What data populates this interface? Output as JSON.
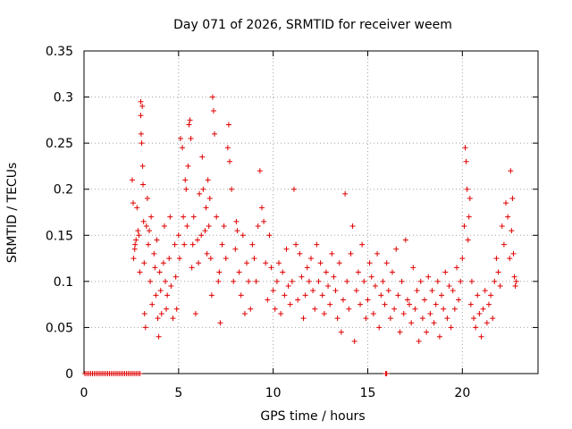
{
  "chart_data": {
    "type": "scatter",
    "title": "Day 071 of 2026, SRMTID for receiver weem",
    "xlabel": "GPS time / hours",
    "ylabel": "SRMTID / TECUs",
    "xlim": [
      0,
      24
    ],
    "ylim": [
      0,
      0.35
    ],
    "xticks": [
      0,
      5,
      10,
      15,
      20
    ],
    "xtick_labels": [
      "0",
      "5",
      "10",
      "15",
      "20"
    ],
    "yticks": [
      0,
      0.05,
      0.1,
      0.15,
      0.2,
      0.25,
      0.3,
      0.35
    ],
    "ytick_labels": [
      "0",
      "0.05",
      "0.1",
      "0.15",
      "0.2",
      "0.25",
      "0.3",
      "0.35"
    ],
    "grid": true,
    "marker": "plus",
    "series": [
      {
        "name": "SRMTID",
        "color": "#e00000",
        "x": [
          0.05,
          0.15,
          0.25,
          0.35,
          0.45,
          0.55,
          0.65,
          0.75,
          0.85,
          0.95,
          1.05,
          1.15,
          1.25,
          1.35,
          1.45,
          1.55,
          1.65,
          1.75,
          1.85,
          1.95,
          2.05,
          2.15,
          2.25,
          2.35,
          2.45,
          2.55,
          2.65,
          2.75,
          2.85,
          2.95,
          2.55,
          2.6,
          2.62,
          2.68,
          2.7,
          2.75,
          2.8,
          2.85,
          2.9,
          2.95,
          3.0,
          3.0,
          3.02,
          3.05,
          3.08,
          3.1,
          3.12,
          3.15,
          3.18,
          3.2,
          3.25,
          3.3,
          3.35,
          3.4,
          3.45,
          3.5,
          3.55,
          3.6,
          3.7,
          3.75,
          3.8,
          3.85,
          3.9,
          3.95,
          4.0,
          4.05,
          4.1,
          4.2,
          4.25,
          4.3,
          4.35,
          4.4,
          4.5,
          4.55,
          4.6,
          4.7,
          4.8,
          4.85,
          4.9,
          5.0,
          5.05,
          5.1,
          5.2,
          5.25,
          5.3,
          5.35,
          5.4,
          5.45,
          5.5,
          5.55,
          5.6,
          5.65,
          5.7,
          5.75,
          5.8,
          5.9,
          6.0,
          6.05,
          6.1,
          6.2,
          6.25,
          6.3,
          6.4,
          6.45,
          6.5,
          6.55,
          6.6,
          6.65,
          6.7,
          6.75,
          6.8,
          6.85,
          6.9,
          7.0,
          7.1,
          7.15,
          7.2,
          7.3,
          7.4,
          7.5,
          7.6,
          7.65,
          7.7,
          7.8,
          7.9,
          8.0,
          8.05,
          8.1,
          8.2,
          8.3,
          8.4,
          8.5,
          8.6,
          8.7,
          8.8,
          8.9,
          9.0,
          9.1,
          9.2,
          9.3,
          9.4,
          9.5,
          9.6,
          9.7,
          9.8,
          9.9,
          10.0,
          10.1,
          10.2,
          10.3,
          10.4,
          10.5,
          10.6,
          10.7,
          10.8,
          10.9,
          11.0,
          11.1,
          11.2,
          11.3,
          11.4,
          11.5,
          11.6,
          11.7,
          11.8,
          11.9,
          12.0,
          12.1,
          12.2,
          12.3,
          12.4,
          12.5,
          12.6,
          12.7,
          12.8,
          12.9,
          13.0,
          13.1,
          13.2,
          13.3,
          13.4,
          13.5,
          13.6,
          13.7,
          13.8,
          13.9,
          14.0,
          14.1,
          14.2,
          14.3,
          14.4,
          14.5,
          14.6,
          14.7,
          14.8,
          14.9,
          15.0,
          15.1,
          15.2,
          15.3,
          15.4,
          15.5,
          15.6,
          15.7,
          15.8,
          15.9,
          16.0,
          16.1,
          16.2,
          16.3,
          16.4,
          16.5,
          16.6,
          16.7,
          16.8,
          16.9,
          17.0,
          17.1,
          17.2,
          17.3,
          17.4,
          17.5,
          17.6,
          17.7,
          17.8,
          17.9,
          18.0,
          18.1,
          18.2,
          18.3,
          18.4,
          18.5,
          18.6,
          18.7,
          18.8,
          18.9,
          19.0,
          19.1,
          19.2,
          19.3,
          19.4,
          19.5,
          19.6,
          19.7,
          19.8,
          19.9,
          20.0,
          20.1,
          20.15,
          20.2,
          20.25,
          20.3,
          20.35,
          20.4,
          20.45,
          20.5,
          20.6,
          20.7,
          20.8,
          20.9,
          21.0,
          21.1,
          21.2,
          21.3,
          21.4,
          21.5,
          21.6,
          21.7,
          21.8,
          21.9,
          22.0,
          22.1,
          22.2,
          22.3,
          22.4,
          22.5,
          22.55,
          22.6,
          22.65,
          22.7,
          22.75,
          22.8,
          22.85,
          15.95,
          16.0
        ],
        "y": [
          0,
          0,
          0,
          0,
          0,
          0,
          0,
          0,
          0,
          0,
          0,
          0,
          0,
          0,
          0,
          0,
          0,
          0,
          0,
          0,
          0,
          0,
          0,
          0,
          0,
          0,
          0,
          0,
          0,
          0,
          0.21,
          0.185,
          0.125,
          0.135,
          0.14,
          0.145,
          0.18,
          0.155,
          0.15,
          0.11,
          0.295,
          0.28,
          0.26,
          0.25,
          0.29,
          0.225,
          0.205,
          0.165,
          0.12,
          0.065,
          0.05,
          0.16,
          0.19,
          0.14,
          0.155,
          0.1,
          0.17,
          0.075,
          0.13,
          0.115,
          0.085,
          0.145,
          0.06,
          0.04,
          0.11,
          0.09,
          0.065,
          0.12,
          0.16,
          0.1,
          0.07,
          0.085,
          0.125,
          0.17,
          0.095,
          0.06,
          0.14,
          0.105,
          0.07,
          0.15,
          0.125,
          0.255,
          0.245,
          0.17,
          0.14,
          0.21,
          0.2,
          0.16,
          0.225,
          0.27,
          0.275,
          0.255,
          0.115,
          0.14,
          0.17,
          0.065,
          0.145,
          0.12,
          0.195,
          0.15,
          0.235,
          0.2,
          0.155,
          0.18,
          0.13,
          0.21,
          0.16,
          0.19,
          0.125,
          0.085,
          0.3,
          0.285,
          0.26,
          0.17,
          0.1,
          0.11,
          0.055,
          0.14,
          0.16,
          0.125,
          0.245,
          0.27,
          0.23,
          0.2,
          0.1,
          0.135,
          0.165,
          0.155,
          0.11,
          0.085,
          0.15,
          0.065,
          0.12,
          0.1,
          0.07,
          0.14,
          0.125,
          0.1,
          0.16,
          0.22,
          0.18,
          0.165,
          0.12,
          0.08,
          0.15,
          0.115,
          0.09,
          0.07,
          0.1,
          0.12,
          0.065,
          0.11,
          0.085,
          0.135,
          0.095,
          0.075,
          0.1,
          0.2,
          0.14,
          0.08,
          0.13,
          0.105,
          0.06,
          0.085,
          0.115,
          0.1,
          0.125,
          0.09,
          0.07,
          0.14,
          0.1,
          0.12,
          0.085,
          0.065,
          0.11,
          0.095,
          0.075,
          0.13,
          0.105,
          0.09,
          0.06,
          0.12,
          0.045,
          0.08,
          0.195,
          0.1,
          0.07,
          0.13,
          0.16,
          0.035,
          0.09,
          0.11,
          0.075,
          0.14,
          0.1,
          0.06,
          0.08,
          0.12,
          0.105,
          0.065,
          0.095,
          0.13,
          0.05,
          0.085,
          0.1,
          0.075,
          0.12,
          0.09,
          0.06,
          0.11,
          0.07,
          0.135,
          0.085,
          0.045,
          0.1,
          0.065,
          0.145,
          0.08,
          0.075,
          0.055,
          0.115,
          0.07,
          0.09,
          0.035,
          0.1,
          0.06,
          0.08,
          0.045,
          0.105,
          0.065,
          0.09,
          0.055,
          0.075,
          0.1,
          0.04,
          0.085,
          0.07,
          0.11,
          0.06,
          0.095,
          0.05,
          0.09,
          0.07,
          0.115,
          0.08,
          0.1,
          0.125,
          0.16,
          0.245,
          0.23,
          0.2,
          0.145,
          0.17,
          0.19,
          0.075,
          0.1,
          0.06,
          0.05,
          0.085,
          0.065,
          0.04,
          0.07,
          0.09,
          0.055,
          0.075,
          0.085,
          0.06,
          0.1,
          0.125,
          0.11,
          0.095,
          0.16,
          0.14,
          0.185,
          0.17,
          0.125,
          0.22,
          0.155,
          0.19,
          0.13,
          0.105,
          0.095,
          0.1,
          0,
          0
        ]
      }
    ]
  }
}
